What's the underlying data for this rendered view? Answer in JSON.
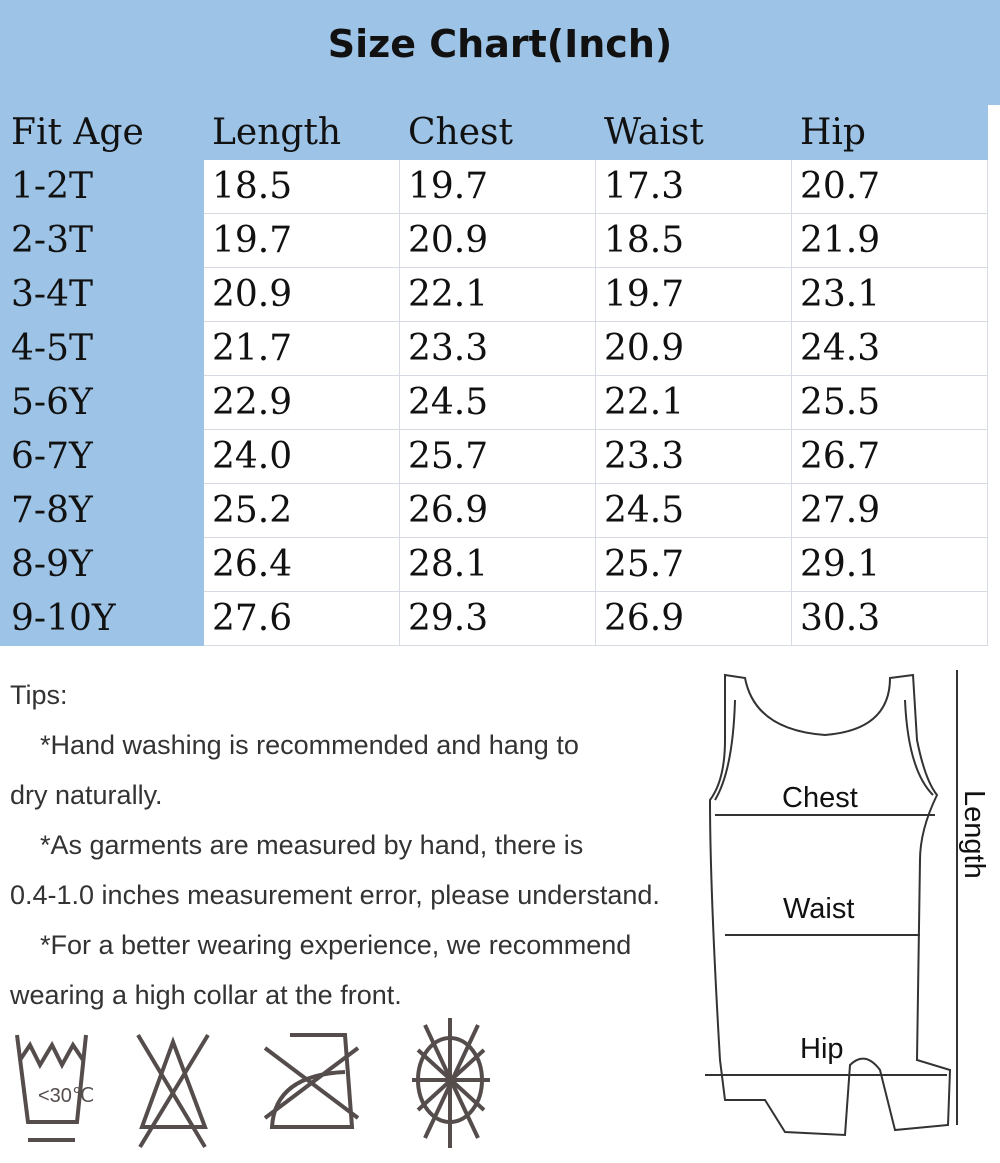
{
  "title": "Size Chart(Inch)",
  "table": {
    "headers": [
      "Fit Age",
      "Length",
      "Chest",
      "Waist",
      "Hip"
    ],
    "rows": [
      [
        "1-2T",
        "18.5",
        "19.7",
        "17.3",
        "20.7"
      ],
      [
        "2-3T",
        "19.7",
        "20.9",
        "18.5",
        "21.9"
      ],
      [
        "3-4T",
        "20.9",
        "22.1",
        "19.7",
        "23.1"
      ],
      [
        "4-5T",
        "21.7",
        "23.3",
        "20.9",
        "24.3"
      ],
      [
        "5-6Y",
        "22.9",
        "24.5",
        "22.1",
        "25.5"
      ],
      [
        "6-7Y",
        "24.0",
        "25.7",
        "23.3",
        "26.7"
      ],
      [
        "7-8Y",
        "25.2",
        "26.9",
        "24.5",
        "27.9"
      ],
      [
        "8-9Y",
        "26.4",
        "28.1",
        "25.7",
        "29.1"
      ],
      [
        "9-10Y",
        "27.6",
        "29.3",
        "26.9",
        "30.3"
      ]
    ]
  },
  "tips": {
    "heading": "Tips:",
    "line1a": "*Hand washing is recommended and hang to",
    "line1b": "dry naturally.",
    "line2a": "*As garments are measured by hand, there is",
    "line2b": "0.4-1.0 inches measurement error, please understand.",
    "line3a": "*For a better wearing experience, we recommend",
    "line3b": "wearing a high collar at the front."
  },
  "diagram": {
    "chest": "Chest",
    "waist": "Waist",
    "hip": "Hip",
    "length": "Length"
  },
  "care_icons": {
    "wash": "<30℃",
    "icons": [
      "hand-wash-30c-icon",
      "no-bleach-icon",
      "no-iron-icon",
      "no-sun-dry-icon"
    ]
  },
  "colors": {
    "header_blue": "#9dc3e6",
    "icon_gray": "#554c4c"
  }
}
